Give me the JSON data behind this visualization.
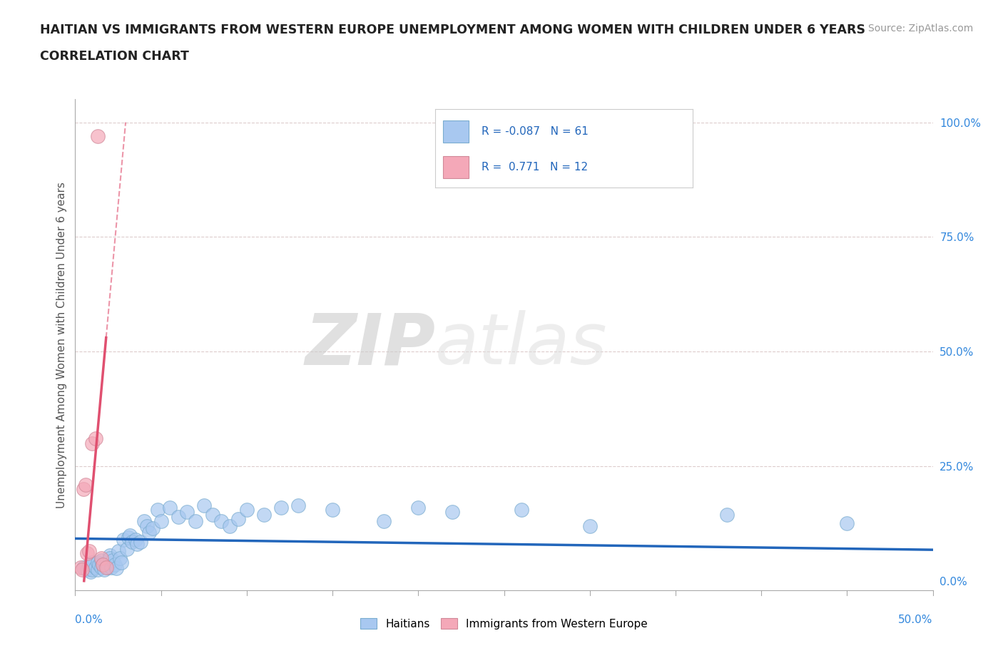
{
  "title_line1": "HAITIAN VS IMMIGRANTS FROM WESTERN EUROPE UNEMPLOYMENT AMONG WOMEN WITH CHILDREN UNDER 6 YEARS",
  "title_line2": "CORRELATION CHART",
  "source_text": "Source: ZipAtlas.com",
  "xlabel_bottom_left": "0.0%",
  "xlabel_bottom_right": "50.0%",
  "ylabel": "Unemployment Among Women with Children Under 6 years",
  "right_yticks": [
    0.0,
    0.25,
    0.5,
    0.75,
    1.0
  ],
  "right_yticklabels": [
    "0.0%",
    "25.0%",
    "50.0%",
    "75.0%",
    "100.0%"
  ],
  "xlim": [
    0.0,
    0.5
  ],
  "ylim": [
    -0.02,
    1.05
  ],
  "blue_R": -0.087,
  "blue_N": 61,
  "pink_R": 0.771,
  "pink_N": 12,
  "legend_label_blue": "Haitians",
  "legend_label_pink": "Immigrants from Western Europe",
  "blue_color": "#a8c8f0",
  "pink_color": "#f4a8b8",
  "trendline_blue_color": "#2266bb",
  "trendline_pink_color": "#e05070",
  "legend_R_color": "#2266bb",
  "watermark_zip": "ZIP",
  "watermark_atlas": "atlas",
  "blue_dots_x": [
    0.005,
    0.007,
    0.008,
    0.009,
    0.01,
    0.01,
    0.01,
    0.012,
    0.013,
    0.013,
    0.014,
    0.015,
    0.015,
    0.016,
    0.017,
    0.018,
    0.019,
    0.02,
    0.02,
    0.021,
    0.022,
    0.023,
    0.024,
    0.025,
    0.026,
    0.027,
    0.028,
    0.03,
    0.031,
    0.032,
    0.033,
    0.035,
    0.036,
    0.038,
    0.04,
    0.042,
    0.043,
    0.045,
    0.048,
    0.05,
    0.055,
    0.06,
    0.065,
    0.07,
    0.075,
    0.08,
    0.085,
    0.09,
    0.095,
    0.1,
    0.11,
    0.12,
    0.13,
    0.15,
    0.18,
    0.2,
    0.22,
    0.26,
    0.3,
    0.38,
    0.45
  ],
  "blue_dots_y": [
    0.03,
    0.025,
    0.03,
    0.02,
    0.025,
    0.035,
    0.04,
    0.03,
    0.025,
    0.04,
    0.035,
    0.03,
    0.045,
    0.035,
    0.025,
    0.04,
    0.03,
    0.055,
    0.05,
    0.03,
    0.045,
    0.035,
    0.028,
    0.065,
    0.05,
    0.04,
    0.09,
    0.07,
    0.095,
    0.1,
    0.085,
    0.09,
    0.08,
    0.085,
    0.13,
    0.12,
    0.105,
    0.115,
    0.155,
    0.13,
    0.16,
    0.14,
    0.15,
    0.13,
    0.165,
    0.145,
    0.13,
    0.12,
    0.135,
    0.155,
    0.145,
    0.16,
    0.165,
    0.155,
    0.13,
    0.16,
    0.15,
    0.155,
    0.12,
    0.145,
    0.125
  ],
  "pink_dots_x": [
    0.003,
    0.004,
    0.005,
    0.006,
    0.007,
    0.008,
    0.01,
    0.012,
    0.013,
    0.015,
    0.016,
    0.018
  ],
  "pink_dots_y": [
    0.03,
    0.025,
    0.2,
    0.21,
    0.06,
    0.065,
    0.3,
    0.31,
    0.97,
    0.05,
    0.035,
    0.03
  ],
  "pink_trendline_x0": 0.0,
  "pink_trendline_x1": 0.022,
  "pink_trendline_dashed_x0": 0.022,
  "pink_trendline_dashed_x1": 0.028
}
